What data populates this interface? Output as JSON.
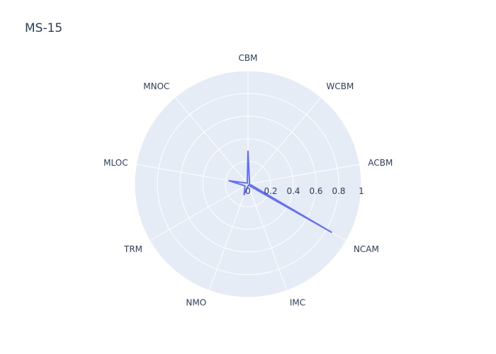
{
  "chart_data": {
    "type": "radar",
    "title": "MS-15",
    "categories": [
      "ACBM",
      "NCAM",
      "IMC",
      "NMO",
      "TRM",
      "MLOC",
      "MNOC",
      "CBM",
      "WCBM"
    ],
    "series": [
      {
        "values": [
          0.01,
          0.85,
          0.01,
          0.1,
          0.03,
          0.17,
          0.01,
          0.29,
          0.02
        ]
      }
    ],
    "radial_ticks": [
      "0",
      "0.2",
      "0.4",
      "0.6",
      "0.8",
      "1"
    ],
    "rlim": [
      0,
      1
    ],
    "grid": true,
    "colors": {
      "background": "#e5ecf6",
      "grid": "#ffffff",
      "line": "#636efa",
      "text": "#2a3f5f"
    }
  }
}
